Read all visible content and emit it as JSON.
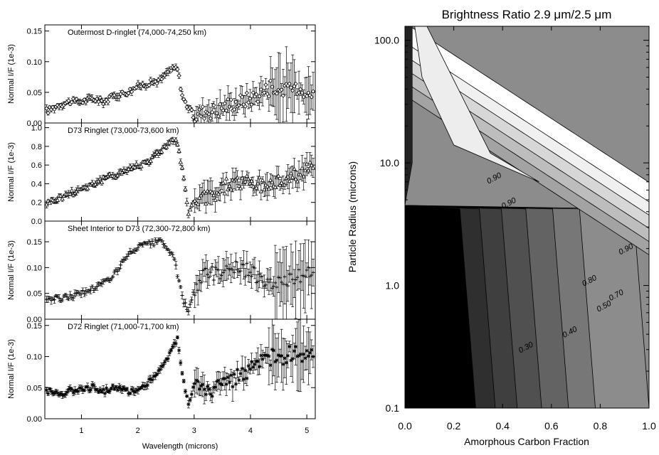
{
  "chart_data": [
    {
      "type": "scatter",
      "title": "Outermost D-ringlet (74,000-74,250 km)",
      "xlabel": "",
      "ylabel": "Normal I/F (1e-3)",
      "xlim": [
        0.35,
        5.15
      ],
      "ylim": [
        0.0,
        0.16
      ],
      "ytick_labels": [
        "0.00",
        "0.05",
        "0.10",
        "0.15"
      ],
      "marker": "diamond",
      "error_bars": true,
      "x": [
        0.4,
        0.6,
        0.8,
        1.0,
        1.2,
        1.4,
        1.6,
        1.8,
        2.0,
        2.2,
        2.4,
        2.55,
        2.7,
        2.8,
        3.0,
        3.2,
        3.4,
        3.6,
        3.8,
        4.0,
        4.2,
        4.4,
        4.6,
        4.8,
        5.0
      ],
      "y": [
        0.02,
        0.03,
        0.035,
        0.035,
        0.04,
        0.035,
        0.045,
        0.05,
        0.06,
        0.065,
        0.07,
        0.085,
        0.09,
        0.04,
        0.01,
        0.02,
        0.02,
        0.03,
        0.035,
        0.04,
        0.05,
        0.06,
        0.05,
        0.06,
        0.05
      ]
    },
    {
      "type": "scatter",
      "title": "D73 Ringlet (73,000-73,600 km)",
      "xlabel": "",
      "ylabel": "Normal I/F (1e-3)",
      "xlim": [
        0.35,
        5.15
      ],
      "ylim": [
        0.0,
        1.05
      ],
      "ytick_labels": [
        "0.0",
        "0.2",
        "0.4",
        "0.6",
        "0.8",
        "1.0"
      ],
      "marker": "triangle",
      "error_bars": true,
      "x": [
        0.4,
        0.6,
        0.8,
        1.0,
        1.2,
        1.4,
        1.6,
        1.8,
        2.0,
        2.2,
        2.4,
        2.55,
        2.7,
        2.8,
        2.9,
        3.0,
        3.2,
        3.4,
        3.6,
        3.8,
        4.0,
        4.2,
        4.4,
        4.6,
        4.8,
        5.0
      ],
      "y": [
        0.2,
        0.25,
        0.3,
        0.35,
        0.4,
        0.45,
        0.5,
        0.55,
        0.6,
        0.65,
        0.75,
        0.85,
        0.85,
        0.5,
        0.1,
        0.2,
        0.25,
        0.3,
        0.4,
        0.42,
        0.4,
        0.38,
        0.4,
        0.45,
        0.5,
        0.55
      ]
    },
    {
      "type": "scatter",
      "title": "Sheet Interior to D73 (72,300-72,800 km)",
      "xlabel": "",
      "ylabel": "Normal I/F (1e-3)",
      "xlim": [
        0.35,
        5.15
      ],
      "ylim": [
        0.0,
        0.19
      ],
      "ytick_labels": [
        "0.00",
        "0.05",
        "0.10",
        "0.15"
      ],
      "marker": "plus",
      "error_bars": true,
      "x": [
        0.4,
        0.6,
        0.8,
        1.0,
        1.2,
        1.4,
        1.6,
        1.8,
        2.0,
        2.2,
        2.4,
        2.6,
        2.7,
        2.8,
        2.9,
        3.0,
        3.2,
        3.4,
        3.6,
        3.8,
        4.0,
        4.2,
        4.4,
        4.6,
        4.8,
        5.0
      ],
      "y": [
        0.04,
        0.04,
        0.045,
        0.05,
        0.06,
        0.07,
        0.09,
        0.12,
        0.14,
        0.145,
        0.15,
        0.13,
        0.09,
        0.04,
        0.01,
        0.06,
        0.09,
        0.09,
        0.1,
        0.1,
        0.09,
        0.08,
        0.07,
        0.07,
        0.08,
        0.09
      ]
    },
    {
      "type": "scatter",
      "title": "D72 Ringlet (71,000-71,700 km)",
      "xlabel": "Wavelength (microns)",
      "ylabel": "Normal I/F (1e-3)",
      "xlim": [
        0.35,
        5.15
      ],
      "ylim": [
        0.0,
        0.16
      ],
      "ytick_labels": [
        "0.00",
        "0.05",
        "0.10",
        "0.15"
      ],
      "xtick_labels": [
        "1",
        "2",
        "3",
        "4",
        "5"
      ],
      "marker": "asterisk",
      "error_bars": true,
      "x": [
        0.4,
        0.6,
        0.8,
        1.0,
        1.2,
        1.4,
        1.6,
        1.8,
        2.0,
        2.2,
        2.4,
        2.55,
        2.7,
        2.8,
        2.9,
        3.0,
        3.2,
        3.4,
        3.6,
        3.8,
        4.0,
        4.2,
        4.4,
        4.6,
        4.8,
        5.0
      ],
      "y": [
        0.045,
        0.04,
        0.045,
        0.05,
        0.05,
        0.045,
        0.05,
        0.045,
        0.045,
        0.06,
        0.08,
        0.1,
        0.13,
        0.07,
        0.02,
        0.06,
        0.04,
        0.05,
        0.06,
        0.07,
        0.08,
        0.09,
        0.1,
        0.1,
        0.11,
        0.1
      ]
    },
    {
      "type": "heatmap",
      "subtype": "filled-contour",
      "title": "Brightness Ratio 2.9 μm/2.5 μm",
      "xlabel": "Amorphous Carbon Fraction",
      "ylabel": "Particle Radius (microns)",
      "xlim": [
        0.0,
        1.0
      ],
      "ylim": [
        0.1,
        130
      ],
      "y_scale": "log",
      "xtick_labels": [
        "0.0",
        "0.2",
        "0.4",
        "0.6",
        "0.8",
        "1.0"
      ],
      "ytick_labels": [
        "0.1",
        "1.0",
        "10.0",
        "100.0"
      ],
      "contour_labels": [
        {
          "text": "0.90",
          "x": 0.37,
          "y": 7.2
        },
        {
          "text": "0.90",
          "x": 0.43,
          "y": 4.5
        },
        {
          "text": "0.90",
          "x": 0.91,
          "y": 1.9
        },
        {
          "text": "0.80",
          "x": 0.76,
          "y": 1.05
        },
        {
          "text": "0.70",
          "x": 0.87,
          "y": 0.8
        },
        {
          "text": "0.50",
          "x": 0.82,
          "y": 0.65
        },
        {
          "text": "0.40",
          "x": 0.68,
          "y": 0.4
        },
        {
          "text": "0.30",
          "x": 0.5,
          "y": 0.3
        }
      ],
      "levels": [
        "0.30",
        "0.40",
        "0.50",
        "0.70",
        "0.80",
        "0.90"
      ],
      "colors": [
        "#000000",
        "#2f2f2f",
        "#3f3f3f",
        "#505050",
        "#636363",
        "#777777",
        "#8c8c8c",
        "#a3a3a3",
        "#bdbdbd",
        "#d7d7d7",
        "#f0f0f0",
        "#ffffff"
      ]
    }
  ]
}
